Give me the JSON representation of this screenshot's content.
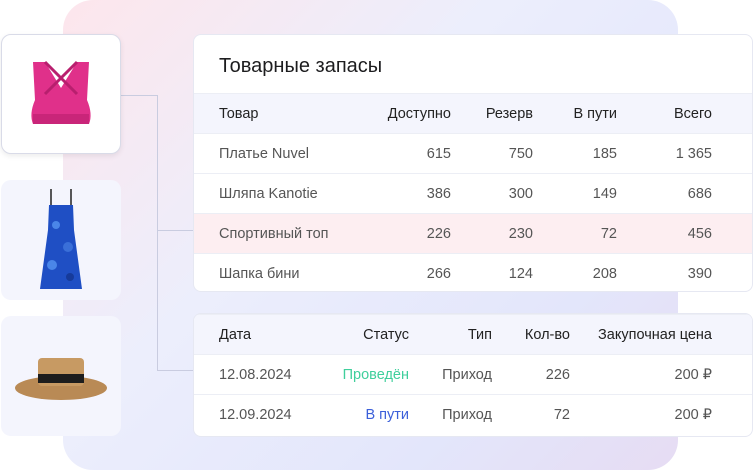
{
  "products": [
    {
      "name": "sports-top",
      "color": "#e0308a",
      "selected": true
    },
    {
      "name": "dress",
      "color": "#1f4fc4",
      "selected": false
    },
    {
      "name": "hat",
      "color": "#b98a55",
      "selected": false
    }
  ],
  "stock": {
    "title": "Товарные запасы",
    "columns": [
      "Товар",
      "Доступно",
      "Резерв",
      "В пути",
      "Всего"
    ],
    "rows": [
      [
        "Платье Nuvel",
        "615",
        "750",
        "185",
        "1 365"
      ],
      [
        "Шляпа Kanotie",
        "386",
        "300",
        "149",
        "686"
      ],
      [
        "Спортивный топ",
        "226",
        "230",
        "72",
        "456"
      ],
      [
        "Шапка бини",
        "266",
        "124",
        "208",
        "390"
      ]
    ],
    "highlighted_row": 2
  },
  "movements": {
    "columns": [
      "Дата",
      "Статус",
      "Тип",
      "Кол-во",
      "Закупочная цена"
    ],
    "rows": [
      [
        "12.08.2024",
        "Проведён",
        "Приход",
        "226",
        "200 ₽"
      ],
      [
        "12.09.2024",
        "В пути",
        "Приход",
        "72",
        "200 ₽"
      ]
    ],
    "status_colors": {
      "Проведён": "#3fcf9c",
      "В пути": "#3b5fd9"
    }
  }
}
